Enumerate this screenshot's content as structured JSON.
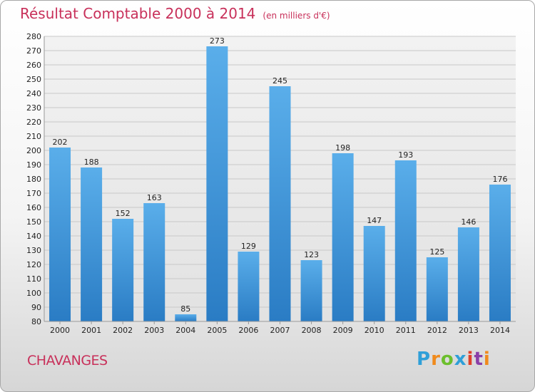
{
  "chart_data": {
    "type": "bar",
    "title": "Résultat Comptable 2000 à 2014",
    "subtitle": "(en milliers d'€)",
    "categories": [
      "2000",
      "2001",
      "2002",
      "2003",
      "2004",
      "2005",
      "2006",
      "2007",
      "2008",
      "2009",
      "2010",
      "2011",
      "2012",
      "2013",
      "2014"
    ],
    "values": [
      202,
      188,
      152,
      163,
      85,
      273,
      129,
      245,
      123,
      198,
      147,
      193,
      125,
      146,
      176
    ],
    "ylim": [
      80,
      280
    ],
    "ytick_step": 10,
    "grid": true,
    "bar_color": "#3a8fd6",
    "xlabel": "",
    "ylabel": ""
  },
  "place_name": "CHAVANGES",
  "logo_text": "Proxiti"
}
